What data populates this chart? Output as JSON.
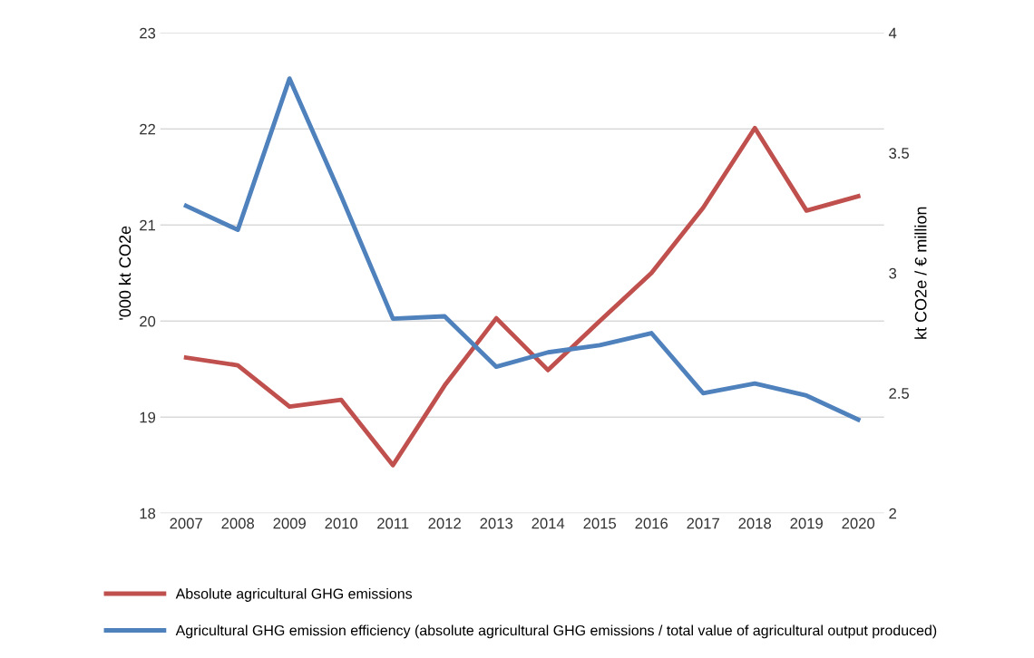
{
  "chart_data": {
    "type": "line",
    "ylabel": "'000 kt CO2e",
    "y2label": "kt CO2e / € million",
    "categories": [
      "2007",
      "2008",
      "2009",
      "2010",
      "2011",
      "2012",
      "2013",
      "2014",
      "2015",
      "2016",
      "2017",
      "2018",
      "2019",
      "2020"
    ],
    "series": [
      {
        "name": "Absolute agricultural GHG emissions",
        "color": "#c0504d",
        "values": [
          19.62,
          19.54,
          19.11,
          19.18,
          18.5,
          19.33,
          20.03,
          19.49,
          20.0,
          20.5,
          21.18,
          22.01,
          21.15,
          21.3
        ]
      },
      {
        "name": "Agricultural GHG emission efficiency (absolute agricultural GHG emissions / total value of agricultural output produced)",
        "color": "#4f81bd",
        "axis": "y2",
        "values": [
          3.28,
          3.18,
          3.81,
          3.32,
          2.81,
          2.82,
          2.61,
          2.67,
          2.7,
          2.75,
          2.5,
          2.54,
          2.49,
          2.39
        ]
      }
    ],
    "ylim": [
      18,
      23
    ],
    "yticks": [
      18,
      19,
      20,
      21,
      22,
      23
    ],
    "y2lim": [
      2,
      4
    ],
    "y2ticks": [
      2,
      2.5,
      3,
      3.5,
      4
    ],
    "grid": "y",
    "legend": "bottom",
    "marker": "none",
    "line_style": "solid"
  }
}
